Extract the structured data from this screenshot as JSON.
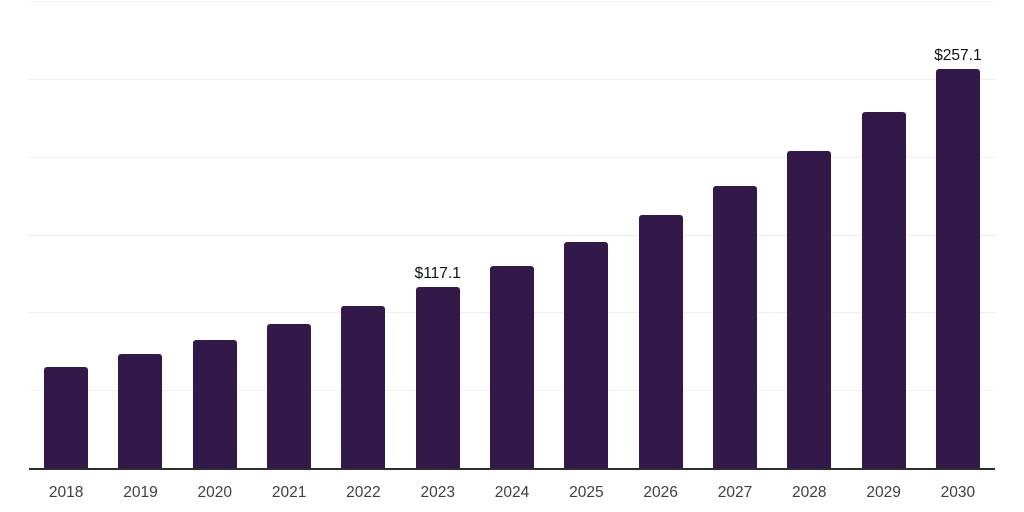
{
  "chart_data": {
    "type": "bar",
    "title": "",
    "xlabel": "",
    "ylabel": "",
    "categories": [
      "2018",
      "2019",
      "2020",
      "2021",
      "2022",
      "2023",
      "2024",
      "2025",
      "2026",
      "2027",
      "2028",
      "2029",
      "2030"
    ],
    "values": [
      65.7,
      73.9,
      82.7,
      93.0,
      104.9,
      117.1,
      130.4,
      145.8,
      163.2,
      182.0,
      204.3,
      229.1,
      257.1
    ],
    "data_labels": [
      {
        "category": "2023",
        "text": "$117.1"
      },
      {
        "category": "2030",
        "text": "$257.1"
      }
    ],
    "ylim": [
      0,
      300
    ],
    "gridline_values": [
      50,
      100,
      150,
      200,
      250,
      300
    ],
    "grid": "horizontal",
    "legend_position": "none",
    "colors": {
      "bar": "#32194a",
      "gridline": "#efefef",
      "axis_line": "#2e2e2e",
      "tick_label": "#3f3f3f",
      "data_label": "#111111",
      "background": "#ffffff"
    }
  }
}
